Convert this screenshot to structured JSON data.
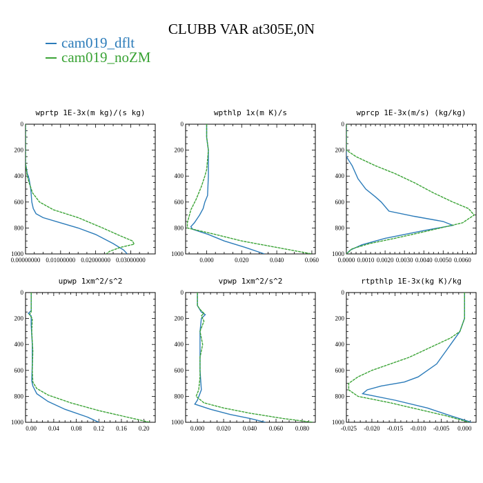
{
  "title": "CLUBB VAR at305E,0N",
  "legend": [
    {
      "name": "cam019_dflt",
      "color": "#2b7bb9"
    },
    {
      "name": "cam019_noZM",
      "color": "#3aa335"
    }
  ],
  "chart_data": [
    {
      "type": "line",
      "title": "wprtp  1E-3x(m kg)/(s kg)",
      "xlim": [
        0,
        0.037
      ],
      "ylim": [
        0,
        1000
      ],
      "xticks": [
        0,
        0.01,
        0.02,
        0.03
      ],
      "xticklabels": [
        "0.00000000",
        "0.01000000",
        "0.02000000",
        "0.03000000"
      ],
      "yticks": [
        0,
        200,
        400,
        600,
        800,
        1000
      ],
      "yticklabels": [
        "0",
        "200",
        "400",
        "600",
        "800",
        "1000"
      ],
      "series": [
        {
          "name": "cam019_dflt",
          "points": [
            [
              0,
              0
            ],
            [
              0,
              300
            ],
            [
              0.0005,
              380
            ],
            [
              0.001,
              420
            ],
            [
              0.0015,
              500
            ],
            [
              0.0018,
              600
            ],
            [
              0.0022,
              650
            ],
            [
              0.003,
              690
            ],
            [
              0.005,
              720
            ],
            [
              0.01,
              760
            ],
            [
              0.015,
              800
            ],
            [
              0.02,
              850
            ],
            [
              0.025,
              920
            ],
            [
              0.028,
              970
            ],
            [
              0.029,
              1000
            ]
          ]
        },
        {
          "name": "cam019_noZM",
          "points": [
            [
              0,
              0
            ],
            [
              0,
              300
            ],
            [
              0.0005,
              400
            ],
            [
              0.001,
              450
            ],
            [
              0.002,
              530
            ],
            [
              0.004,
              600
            ],
            [
              0.008,
              660
            ],
            [
              0.015,
              720
            ],
            [
              0.022,
              800
            ],
            [
              0.027,
              860
            ],
            [
              0.0305,
              900
            ],
            [
              0.031,
              925
            ],
            [
              0.027,
              950
            ],
            [
              0.024,
              980
            ],
            [
              0.023,
              1000
            ]
          ]
        }
      ]
    },
    {
      "type": "line",
      "title": "wpthlp  1x(m K)/s",
      "xlim": [
        -0.012,
        0.062
      ],
      "ylim": [
        0,
        1000
      ],
      "xticks": [
        0,
        0.02,
        0.04,
        0.06
      ],
      "xticklabels": [
        "0.000",
        "0.020",
        "0.040",
        "0.060"
      ],
      "yticks": [
        0,
        200,
        400,
        600,
        800,
        1000
      ],
      "yticklabels": [
        "0",
        "200",
        "400",
        "600",
        "800",
        "1000"
      ],
      "series": [
        {
          "name": "cam019_dflt",
          "points": [
            [
              0,
              0
            ],
            [
              0,
              100
            ],
            [
              0.001,
              200
            ],
            [
              0.001,
              400
            ],
            [
              0.0005,
              550
            ],
            [
              -0.001,
              600
            ],
            [
              -0.002,
              650
            ],
            [
              -0.004,
              700
            ],
            [
              -0.007,
              760
            ],
            [
              -0.009,
              790
            ],
            [
              -0.008,
              810
            ],
            [
              0.001,
              850
            ],
            [
              0.01,
              900
            ],
            [
              0.022,
              950
            ],
            [
              0.033,
              1000
            ]
          ]
        },
        {
          "name": "cam019_noZM",
          "points": [
            [
              0,
              0
            ],
            [
              0,
              100
            ],
            [
              0.001,
              200
            ],
            [
              0,
              350
            ],
            [
              -0.001,
              400
            ],
            [
              -0.003,
              480
            ],
            [
              -0.006,
              580
            ],
            [
              -0.009,
              660
            ],
            [
              -0.011,
              760
            ],
            [
              -0.011,
              800
            ],
            [
              0.005,
              850
            ],
            [
              0.02,
              900
            ],
            [
              0.04,
              950
            ],
            [
              0.06,
              1000
            ]
          ]
        }
      ]
    },
    {
      "type": "line",
      "title": "wprcp  1E-3x(m/s) (kg/kg)",
      "xlim": [
        0,
        0.0067
      ],
      "ylim": [
        0,
        1000
      ],
      "xticks": [
        0,
        0.001,
        0.002,
        0.003,
        0.004,
        0.005,
        0.006
      ],
      "xticklabels": [
        "0.0000",
        "0.0010",
        "0.0020",
        "0.0030",
        "0.0040",
        "0.0050",
        "0.0060"
      ],
      "yticks": [
        0,
        200,
        400,
        600,
        800,
        1000
      ],
      "yticklabels": [
        "0",
        "200",
        "400",
        "600",
        "800",
        "1000"
      ],
      "series": [
        {
          "name": "cam019_dflt",
          "points": [
            [
              0,
              0
            ],
            [
              0,
              250
            ],
            [
              0.0003,
              320
            ],
            [
              0.0006,
              420
            ],
            [
              0.001,
              500
            ],
            [
              0.0015,
              560
            ],
            [
              0.0018,
              600
            ],
            [
              0.0022,
              670
            ],
            [
              0.0035,
              710
            ],
            [
              0.005,
              750
            ],
            [
              0.0055,
              780
            ],
            [
              0.004,
              820
            ],
            [
              0.002,
              880
            ],
            [
              0.0008,
              930
            ],
            [
              0.0002,
              970
            ],
            [
              0,
              1000
            ]
          ]
        },
        {
          "name": "cam019_noZM",
          "points": [
            [
              0,
              0
            ],
            [
              0,
              200
            ],
            [
              0.0005,
              250
            ],
            [
              0.0015,
              320
            ],
            [
              0.0025,
              380
            ],
            [
              0.0035,
              450
            ],
            [
              0.0045,
              530
            ],
            [
              0.0055,
              600
            ],
            [
              0.0063,
              650
            ],
            [
              0.0066,
              700
            ],
            [
              0.006,
              760
            ],
            [
              0.004,
              830
            ],
            [
              0.0025,
              880
            ],
            [
              0.0012,
              920
            ],
            [
              0.0003,
              960
            ],
            [
              0,
              1000
            ]
          ]
        }
      ]
    },
    {
      "type": "line",
      "title": "upwp  1xm^2/s^2",
      "xlim": [
        -0.01,
        0.22
      ],
      "ylim": [
        0,
        1000
      ],
      "xticks": [
        0,
        0.04,
        0.08,
        0.12,
        0.16,
        0.2
      ],
      "xticklabels": [
        "0.00",
        "0.04",
        "0.08",
        "0.12",
        "0.16",
        "0.20"
      ],
      "yticks": [
        0,
        200,
        400,
        600,
        800,
        1000
      ],
      "yticklabels": [
        "0",
        "200",
        "400",
        "600",
        "800",
        "1000"
      ],
      "series": [
        {
          "name": "cam019_dflt",
          "points": [
            [
              0,
              0
            ],
            [
              0,
              140
            ],
            [
              -0.005,
              160
            ],
            [
              0,
              180
            ],
            [
              0,
              250
            ],
            [
              0.002,
              400
            ],
            [
              0.002,
              550
            ],
            [
              0.001,
              680
            ],
            [
              0.003,
              720
            ],
            [
              0.01,
              780
            ],
            [
              0.03,
              840
            ],
            [
              0.06,
              900
            ],
            [
              0.1,
              960
            ],
            [
              0.12,
              1000
            ]
          ]
        },
        {
          "name": "cam019_noZM",
          "points": [
            [
              0,
              0
            ],
            [
              0,
              150
            ],
            [
              -0.003,
              170
            ],
            [
              0.002,
              200
            ],
            [
              0.001,
              300
            ],
            [
              0.003,
              450
            ],
            [
              0.002,
              600
            ],
            [
              0.003,
              690
            ],
            [
              0.01,
              740
            ],
            [
              0.03,
              790
            ],
            [
              0.07,
              850
            ],
            [
              0.12,
              910
            ],
            [
              0.17,
              960
            ],
            [
              0.21,
              1000
            ]
          ]
        }
      ]
    },
    {
      "type": "line",
      "title": "vpwp  1xm^2/s^2",
      "xlim": [
        -0.009,
        0.09
      ],
      "ylim": [
        0,
        1000
      ],
      "xticks": [
        0,
        0.02,
        0.04,
        0.06,
        0.08
      ],
      "xticklabels": [
        "0.000",
        "0.020",
        "0.040",
        "0.060",
        "0.080"
      ],
      "yticks": [
        0,
        200,
        400,
        600,
        800,
        1000
      ],
      "yticklabels": [
        "0",
        "200",
        "400",
        "600",
        "800",
        "1000"
      ],
      "series": [
        {
          "name": "cam019_dflt",
          "points": [
            [
              0,
              0
            ],
            [
              0,
              100
            ],
            [
              0.003,
              150
            ],
            [
              0.006,
              170
            ],
            [
              0.003,
              200
            ],
            [
              0.002,
              300
            ],
            [
              0.002,
              450
            ],
            [
              0.002,
              600
            ],
            [
              0.003,
              750
            ],
            [
              0,
              830
            ],
            [
              -0.002,
              860
            ],
            [
              0.01,
              900
            ],
            [
              0.025,
              940
            ],
            [
              0.04,
              970
            ],
            [
              0.052,
              1000
            ]
          ]
        },
        {
          "name": "cam019_noZM",
          "points": [
            [
              0,
              0
            ],
            [
              0,
              100
            ],
            [
              0.002,
              130
            ],
            [
              0.005,
              160
            ],
            [
              0.003,
              180
            ],
            [
              0.005,
              220
            ],
            [
              0.002,
              300
            ],
            [
              0.004,
              400
            ],
            [
              0.002,
              500
            ],
            [
              0.002,
              650
            ],
            [
              0.001,
              750
            ],
            [
              -0.001,
              800
            ],
            [
              0.005,
              850
            ],
            [
              0.02,
              890
            ],
            [
              0.04,
              930
            ],
            [
              0.065,
              970
            ],
            [
              0.088,
              1000
            ]
          ]
        }
      ]
    },
    {
      "type": "line",
      "title": "rtpthlp  1E-3x(kg K)/kg",
      "xlim": [
        -0.0255,
        0.0025
      ],
      "ylim": [
        0,
        1000
      ],
      "xticks": [
        -0.025,
        -0.02,
        -0.015,
        -0.01,
        -0.005,
        0
      ],
      "xticklabels": [
        "-0.025",
        "-0.020",
        "-0.015",
        "-0.010",
        "-0.005",
        "0.000"
      ],
      "yticks": [
        0,
        200,
        400,
        600,
        800,
        1000
      ],
      "yticklabels": [
        "0",
        "200",
        "400",
        "600",
        "800",
        "1000"
      ],
      "series": [
        {
          "name": "cam019_dflt",
          "points": [
            [
              0,
              0
            ],
            [
              0,
              200
            ],
            [
              -0.001,
              300
            ],
            [
              -0.002,
              350
            ],
            [
              -0.003,
              400
            ],
            [
              -0.004,
              450
            ],
            [
              -0.005,
              500
            ],
            [
              -0.006,
              550
            ],
            [
              -0.008,
              600
            ],
            [
              -0.01,
              650
            ],
            [
              -0.013,
              690
            ],
            [
              -0.018,
              720
            ],
            [
              -0.021,
              750
            ],
            [
              -0.022,
              780
            ],
            [
              -0.015,
              830
            ],
            [
              -0.008,
              890
            ],
            [
              -0.003,
              950
            ],
            [
              0.0015,
              1000
            ]
          ]
        },
        {
          "name": "cam019_noZM",
          "points": [
            [
              0,
              0
            ],
            [
              0,
              200
            ],
            [
              -0.001,
              300
            ],
            [
              -0.003,
              350
            ],
            [
              -0.006,
              400
            ],
            [
              -0.009,
              450
            ],
            [
              -0.012,
              500
            ],
            [
              -0.016,
              550
            ],
            [
              -0.02,
              600
            ],
            [
              -0.023,
              650
            ],
            [
              -0.025,
              700
            ],
            [
              -0.025,
              750
            ],
            [
              -0.023,
              800
            ],
            [
              -0.016,
              850
            ],
            [
              -0.01,
              900
            ],
            [
              -0.004,
              950
            ],
            [
              0.001,
              1000
            ]
          ]
        }
      ]
    }
  ]
}
